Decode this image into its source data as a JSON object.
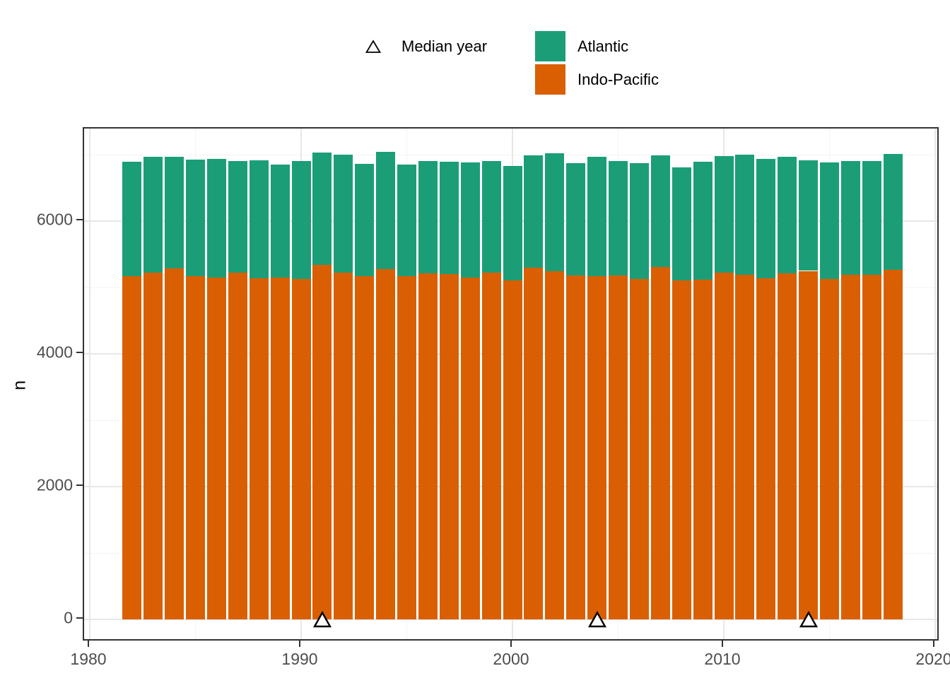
{
  "figure": {
    "background": "#ffffff"
  },
  "legend": {
    "position": "top",
    "median_marker": {
      "label": "Median year",
      "symbol": "open-triangle-icon"
    },
    "fill_items": [
      {
        "label": "Atlantic",
        "color": "#1B9E77"
      },
      {
        "label": "Indo-Pacific",
        "color": "#D95F02"
      }
    ]
  },
  "axes": {
    "y": {
      "title": "n",
      "major_ticks": [
        0,
        2000,
        4000,
        6000
      ],
      "minor_gridlines": [
        1000,
        3000,
        5000,
        7000
      ],
      "tick_labels": [
        "0",
        "2000",
        "4000",
        "6000"
      ]
    },
    "x": {
      "title": "",
      "major_ticks": [
        1980,
        1990,
        2000,
        2010,
        2020
      ],
      "minor_gridlines": [
        1985,
        1995,
        2005,
        2015
      ],
      "tick_labels": [
        "1980",
        "1990",
        "2000",
        "2010",
        "2020"
      ]
    }
  },
  "chart_data": {
    "type": "bar",
    "stacked": true,
    "title": "",
    "xlabel": "",
    "ylabel": "n",
    "xlim": [
      1979.7,
      2020.2
    ],
    "ylim": [
      0,
      7390
    ],
    "grid": "on",
    "legend_position": "top",
    "bar_width_years": 0.9,
    "categories": [
      1982,
      1983,
      1984,
      1985,
      1986,
      1987,
      1988,
      1989,
      1990,
      1991,
      1992,
      1993,
      1994,
      1995,
      1996,
      1997,
      1998,
      1999,
      2000,
      2001,
      2002,
      2003,
      2004,
      2005,
      2006,
      2007,
      2008,
      2009,
      2010,
      2011,
      2012,
      2013,
      2014,
      2015,
      2016,
      2017,
      2018
    ],
    "series": [
      {
        "name": "Indo-Pacific",
        "color": "#D95F02",
        "values": [
          5170,
          5225,
          5285,
          5165,
          5150,
          5225,
          5135,
          5150,
          5125,
          5340,
          5225,
          5170,
          5275,
          5170,
          5210,
          5200,
          5150,
          5220,
          5110,
          5300,
          5245,
          5185,
          5170,
          5180,
          5125,
          5310,
          5105,
          5120,
          5225,
          5195,
          5135,
          5215,
          5250,
          5130,
          5190,
          5190,
          5270
        ]
      },
      {
        "name": "Atlantic",
        "color": "#1B9E77",
        "values": [
          1725,
          1745,
          1685,
          1760,
          1790,
          1680,
          1780,
          1705,
          1780,
          1690,
          1780,
          1690,
          1765,
          1685,
          1695,
          1690,
          1735,
          1685,
          1715,
          1685,
          1775,
          1685,
          1800,
          1725,
          1745,
          1680,
          1705,
          1775,
          1755,
          1810,
          1805,
          1755,
          1670,
          1755,
          1710,
          1710,
          1745
        ]
      }
    ],
    "markers": {
      "name": "Median year",
      "shape": "open-triangle",
      "x": [
        1991,
        2004,
        2014
      ],
      "y": 0
    }
  }
}
